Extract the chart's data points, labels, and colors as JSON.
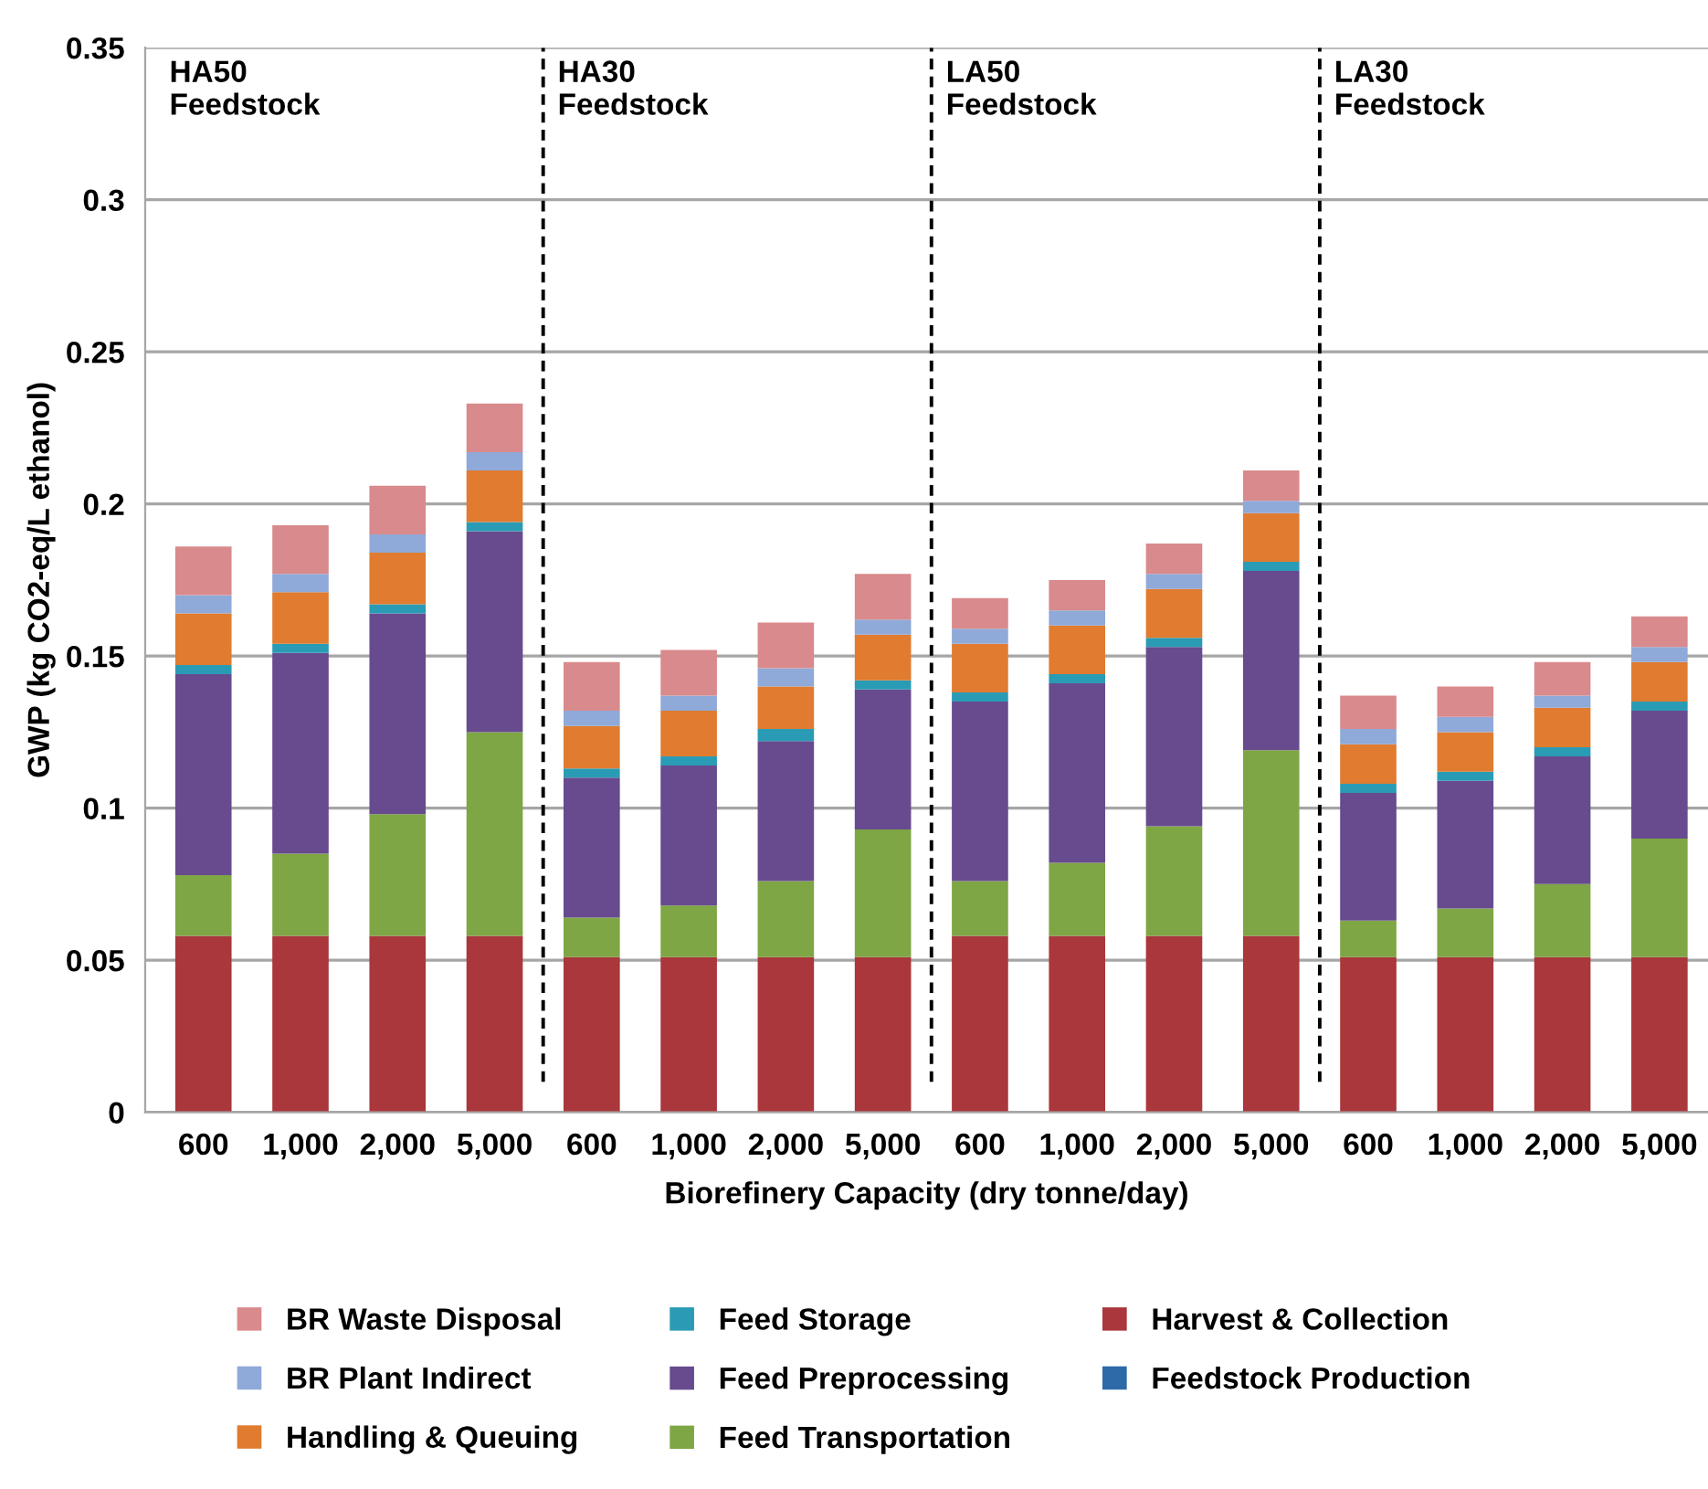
{
  "chart_data": {
    "type": "bar",
    "stacked": true,
    "xlabel": "Biorefinery Capacity (dry tonne/day)",
    "ylabel": "GWP (kg CO2-eq/L ethanol)",
    "categories": [
      "600",
      "1,000",
      "2,000",
      "5,000",
      "600",
      "1,000",
      "2,000",
      "5,000",
      "600",
      "1,000",
      "2,000",
      "5,000",
      "600",
      "1,000",
      "2,000",
      "5,000"
    ],
    "annotations": [
      "HA50\nFeedstock",
      "HA30\nFeedstock",
      "LA50\nFeedstock",
      "LA30\nFeedstock"
    ],
    "series": [
      {
        "name": "Feedstock Production",
        "color": "#2e6aa8",
        "values": [
          0,
          0,
          0,
          0,
          0,
          0,
          0,
          0,
          0,
          0,
          0,
          0,
          0,
          0,
          0,
          0
        ]
      },
      {
        "name": "Harvest & Collection",
        "color": "#a9373b",
        "values": [
          0.058,
          0.058,
          0.058,
          0.058,
          0.051,
          0.051,
          0.051,
          0.051,
          0.058,
          0.058,
          0.058,
          0.058,
          0.051,
          0.051,
          0.051,
          0.051
        ]
      },
      {
        "name": "Feed Transportation",
        "color": "#7ea644",
        "values": [
          0.02,
          0.027,
          0.04,
          0.067,
          0.013,
          0.017,
          0.025,
          0.042,
          0.018,
          0.024,
          0.036,
          0.061,
          0.012,
          0.016,
          0.024,
          0.039
        ]
      },
      {
        "name": "Feed Preprocessing",
        "color": "#674b8e",
        "values": [
          0.066,
          0.066,
          0.066,
          0.066,
          0.046,
          0.046,
          0.046,
          0.046,
          0.059,
          0.059,
          0.059,
          0.059,
          0.042,
          0.042,
          0.042,
          0.042
        ]
      },
      {
        "name": "Feed Storage",
        "color": "#2a9bb5",
        "values": [
          0.003,
          0.003,
          0.003,
          0.003,
          0.003,
          0.003,
          0.004,
          0.003,
          0.003,
          0.003,
          0.003,
          0.003,
          0.003,
          0.003,
          0.003,
          0.003
        ]
      },
      {
        "name": "Handling & Queuing",
        "color": "#e07b2f",
        "values": [
          0.017,
          0.017,
          0.017,
          0.017,
          0.014,
          0.015,
          0.014,
          0.015,
          0.016,
          0.016,
          0.016,
          0.016,
          0.013,
          0.013,
          0.013,
          0.013
        ]
      },
      {
        "name": "BR Plant Indirect",
        "color": "#8fa9d9",
        "values": [
          0.006,
          0.006,
          0.006,
          0.006,
          0.005,
          0.005,
          0.006,
          0.005,
          0.005,
          0.005,
          0.005,
          0.004,
          0.005,
          0.005,
          0.004,
          0.005
        ]
      },
      {
        "name": "BR Waste Disposal",
        "color": "#d98a8c",
        "values": [
          0.016,
          0.016,
          0.016,
          0.016,
          0.016,
          0.015,
          0.015,
          0.015,
          0.01,
          0.01,
          0.01,
          0.01,
          0.011,
          0.01,
          0.011,
          0.01
        ]
      }
    ],
    "ylim": [
      0,
      0.35
    ],
    "yticks": [
      0,
      0.05,
      0.1,
      0.15,
      0.2,
      0.25,
      0.3,
      0.35
    ],
    "grid": "y",
    "legend": "bottom"
  }
}
